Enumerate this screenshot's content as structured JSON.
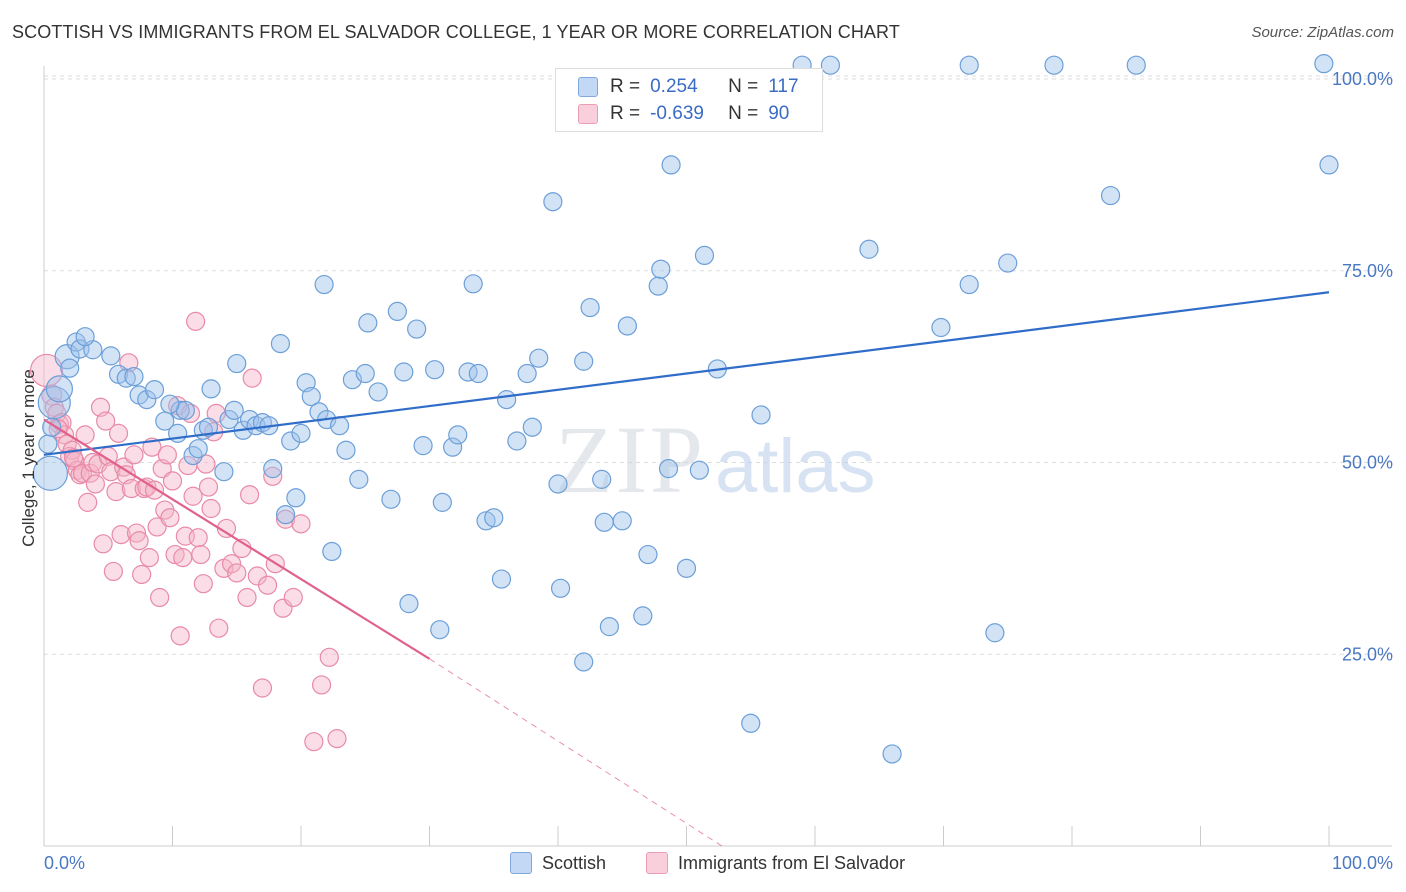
{
  "header": {
    "title": "SCOTTISH VS IMMIGRANTS FROM EL SALVADOR COLLEGE, 1 YEAR OR MORE CORRELATION CHART",
    "source": "Source: ZipAtlas.com"
  },
  "legend": {
    "rows": [
      {
        "r_label": "R =",
        "r_value": "0.254",
        "n_label": "N =",
        "n_value": "117",
        "color": "#9ec1ec"
      },
      {
        "r_label": "R =",
        "r_value": "-0.639",
        "n_label": "N =",
        "n_value": "90",
        "color": "#f5b4c8"
      }
    ]
  },
  "bottom_legend": [
    {
      "label": "Scottish",
      "color": "#9ec1ec"
    },
    {
      "label": "Immigrants from El Salvador",
      "color": "#f5b4c8"
    }
  ],
  "colors": {
    "blue_fill": "#9ec1ec",
    "blue_stroke": "#6c9fd8",
    "blue_line": "#2f6dc9",
    "pink_fill": "#f5b4c8",
    "pink_stroke": "#e88aa8",
    "pink_line": "#e0628c",
    "grid": "#dddddd",
    "tick_text": "#4a78c2"
  },
  "chart_data": {
    "type": "scatter",
    "title": "SCOTTISH VS IMMIGRANTS FROM EL SALVADOR COLLEGE, 1 YEAR OR MORE CORRELATION CHART",
    "xlabel": "",
    "ylabel": "College, 1 year or more",
    "x_tick_labels": [
      "0.0%",
      "100.0%"
    ],
    "y_tick_labels": [
      "25.0%",
      "50.0%",
      "75.0%",
      "100.0%"
    ],
    "y_ticks": [
      25,
      50,
      75,
      100
    ],
    "xlim": [
      0,
      100
    ],
    "ylim": [
      0,
      102
    ],
    "grid": "horizontal dashed",
    "legend_position": "top-center",
    "watermark": "ZIPatlas",
    "series": [
      {
        "name": "Scottish",
        "r": 0.254,
        "n": 117,
        "trend": {
          "x0": 0,
          "y0": 51,
          "x1": 100,
          "y1": 72.2
        },
        "points": [
          [
            0.5,
            48.6
          ],
          [
            0.8,
            57.8
          ],
          [
            1.2,
            59.6
          ],
          [
            1.8,
            63.8
          ],
          [
            2,
            62.3
          ],
          [
            2.5,
            65.7
          ],
          [
            2.8,
            64.8
          ],
          [
            3.8,
            64.7
          ],
          [
            5.2,
            63.9
          ],
          [
            5.8,
            61.5
          ],
          [
            6.4,
            61
          ],
          [
            7.4,
            58.8
          ],
          [
            8,
            58.2
          ],
          [
            8.6,
            59.5
          ],
          [
            9.4,
            55.4
          ],
          [
            10.4,
            53.8
          ],
          [
            10.6,
            56.8
          ],
          [
            11,
            56.8
          ],
          [
            11.6,
            50.9
          ],
          [
            12,
            51.8
          ],
          [
            12.4,
            54.2
          ],
          [
            12.8,
            54.6
          ],
          [
            13,
            59.6
          ],
          [
            14,
            48.8
          ],
          [
            14.4,
            55.6
          ],
          [
            14.8,
            56.8
          ],
          [
            15,
            62.9
          ],
          [
            15.5,
            54.2
          ],
          [
            16,
            55.6
          ],
          [
            16.5,
            54.8
          ],
          [
            17,
            55.2
          ],
          [
            17.5,
            54.8
          ],
          [
            17.8,
            49.2
          ],
          [
            18.4,
            65.5
          ],
          [
            18.8,
            43.2
          ],
          [
            19.2,
            52.8
          ],
          [
            19.6,
            45.4
          ],
          [
            20,
            53.8
          ],
          [
            20.4,
            60.4
          ],
          [
            20.8,
            58.6
          ],
          [
            21.4,
            56.6
          ],
          [
            21.8,
            73.2
          ],
          [
            22,
            55.6
          ],
          [
            22.4,
            38.4
          ],
          [
            23,
            54.8
          ],
          [
            23.5,
            51.6
          ],
          [
            24,
            60.8
          ],
          [
            24.5,
            47.8
          ],
          [
            25,
            61.6
          ],
          [
            25.2,
            68.2
          ],
          [
            26,
            59.2
          ],
          [
            27,
            45.2
          ],
          [
            27.5,
            69.7
          ],
          [
            28,
            61.8
          ],
          [
            28.4,
            31.6
          ],
          [
            29,
            67.4
          ],
          [
            29.5,
            52.2
          ],
          [
            30.4,
            62.1
          ],
          [
            30.8,
            28.2
          ],
          [
            31,
            44.8
          ],
          [
            31.8,
            52
          ],
          [
            32.2,
            53.6
          ],
          [
            33,
            61.8
          ],
          [
            33.4,
            73.3
          ],
          [
            33.8,
            61.6
          ],
          [
            34.4,
            42.4
          ],
          [
            35,
            42.8
          ],
          [
            35.6,
            34.8
          ],
          [
            36,
            58.2
          ],
          [
            36.8,
            52.8
          ],
          [
            37.6,
            61.6
          ],
          [
            38,
            54.6
          ],
          [
            38.5,
            63.6
          ],
          [
            39.6,
            84
          ],
          [
            40,
            47.2
          ],
          [
            40.2,
            33.6
          ],
          [
            41,
            95.8
          ],
          [
            42,
            63.2
          ],
          [
            42,
            24
          ],
          [
            42.5,
            70.2
          ],
          [
            43.4,
            47.8
          ],
          [
            43.6,
            42.2
          ],
          [
            44,
            28.6
          ],
          [
            45,
            42.4
          ],
          [
            45.4,
            67.8
          ],
          [
            46.6,
            30
          ],
          [
            47,
            38
          ],
          [
            47.8,
            73
          ],
          [
            48,
            75.2
          ],
          [
            48.6,
            49.2
          ],
          [
            48.8,
            88.8
          ],
          [
            50,
            36.2
          ],
          [
            50.6,
            95.6
          ],
          [
            51,
            49
          ],
          [
            51.4,
            77
          ],
          [
            52.4,
            62.2
          ],
          [
            55,
            16
          ],
          [
            55.8,
            56.2
          ],
          [
            59,
            101.8
          ],
          [
            61.2,
            101.8
          ],
          [
            64.2,
            77.8
          ],
          [
            66,
            12
          ],
          [
            69.8,
            67.6
          ],
          [
            72,
            101.8
          ],
          [
            72,
            73.2
          ],
          [
            74,
            27.8
          ],
          [
            75,
            76
          ],
          [
            78.6,
            101.8
          ],
          [
            83,
            84.8
          ],
          [
            85,
            101.8
          ],
          [
            100,
            88.8
          ],
          [
            99.6,
            102
          ],
          [
            0.3,
            52.4
          ],
          [
            0.6,
            54.6
          ],
          [
            9.8,
            57.6
          ],
          [
            7,
            61.2
          ],
          [
            3.2,
            66.4
          ]
        ]
      },
      {
        "name": "Immigrants from El Salvador",
        "r": -0.639,
        "n": 90,
        "trend": {
          "x0": 0,
          "y0": 55.6,
          "x1": 30,
          "y1": 24.4,
          "dash_x1": 53,
          "dash_y1": 0
        },
        "points": [
          [
            0.2,
            62
          ],
          [
            0.6,
            58.8
          ],
          [
            0.8,
            57.2
          ],
          [
            1,
            56.4
          ],
          [
            1.2,
            55
          ],
          [
            1.4,
            55.2
          ],
          [
            1.6,
            53.6
          ],
          [
            1.8,
            52.4
          ],
          [
            2,
            50.8
          ],
          [
            2.2,
            51.6
          ],
          [
            2.4,
            50.2
          ],
          [
            2.6,
            49
          ],
          [
            2.8,
            48.4
          ],
          [
            3,
            48.6
          ],
          [
            3.2,
            53.6
          ],
          [
            3.4,
            44.8
          ],
          [
            3.6,
            48.6
          ],
          [
            3.8,
            50
          ],
          [
            4,
            47.2
          ],
          [
            4.2,
            49.8
          ],
          [
            4.4,
            57.2
          ],
          [
            4.6,
            39.4
          ],
          [
            4.8,
            55.4
          ],
          [
            5,
            50.8
          ],
          [
            5.2,
            48.8
          ],
          [
            5.4,
            35.8
          ],
          [
            5.6,
            46.2
          ],
          [
            5.8,
            53.8
          ],
          [
            6,
            40.6
          ],
          [
            6.2,
            49.4
          ],
          [
            6.4,
            48.4
          ],
          [
            6.6,
            63
          ],
          [
            6.8,
            46.6
          ],
          [
            7,
            51
          ],
          [
            7.2,
            40.8
          ],
          [
            7.4,
            39.8
          ],
          [
            7.6,
            35.4
          ],
          [
            7.8,
            46.6
          ],
          [
            8,
            46.8
          ],
          [
            8.2,
            37.6
          ],
          [
            8.4,
            52
          ],
          [
            8.6,
            46.4
          ],
          [
            8.8,
            41.6
          ],
          [
            9,
            32.4
          ],
          [
            9.2,
            49.2
          ],
          [
            9.4,
            43.8
          ],
          [
            9.6,
            51
          ],
          [
            9.8,
            42.8
          ],
          [
            10,
            47.6
          ],
          [
            10.2,
            38
          ],
          [
            10.4,
            57.4
          ],
          [
            10.6,
            27.4
          ],
          [
            10.8,
            37.6
          ],
          [
            11,
            40.4
          ],
          [
            11.2,
            49.6
          ],
          [
            11.4,
            56.4
          ],
          [
            11.6,
            45.6
          ],
          [
            11.8,
            68.4
          ],
          [
            12,
            40.2
          ],
          [
            12.2,
            38
          ],
          [
            12.4,
            34.2
          ],
          [
            12.6,
            49.8
          ],
          [
            12.8,
            46.8
          ],
          [
            13,
            44
          ],
          [
            13.2,
            54
          ],
          [
            13.4,
            56.4
          ],
          [
            13.6,
            28.4
          ],
          [
            14,
            36.2
          ],
          [
            14.2,
            41.4
          ],
          [
            14.6,
            36.8
          ],
          [
            15,
            35.6
          ],
          [
            15.4,
            38.8
          ],
          [
            15.8,
            32.4
          ],
          [
            16,
            45.8
          ],
          [
            16.2,
            61
          ],
          [
            16.6,
            35.2
          ],
          [
            17,
            20.6
          ],
          [
            17.4,
            34
          ],
          [
            17.8,
            48.2
          ],
          [
            18,
            36.8
          ],
          [
            18.6,
            31
          ],
          [
            18.8,
            42.6
          ],
          [
            19.4,
            32.4
          ],
          [
            20,
            42
          ],
          [
            21,
            13.6
          ],
          [
            21.6,
            21
          ],
          [
            22.2,
            24.6
          ],
          [
            22.8,
            14
          ],
          [
            1.1,
            54.4
          ],
          [
            2.3,
            50.6
          ]
        ]
      }
    ]
  }
}
